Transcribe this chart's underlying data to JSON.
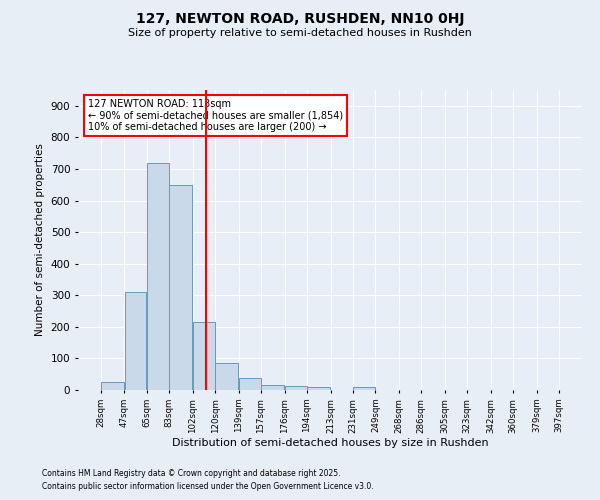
{
  "title1": "127, NEWTON ROAD, RUSHDEN, NN10 0HJ",
  "title2": "Size of property relative to semi-detached houses in Rushden",
  "xlabel": "Distribution of semi-detached houses by size in Rushden",
  "ylabel": "Number of semi-detached properties",
  "bar_values": [
    25,
    310,
    720,
    650,
    215,
    85,
    37,
    15,
    13,
    10,
    0,
    8,
    0,
    0,
    0,
    0,
    0,
    0,
    0,
    0
  ],
  "bin_labels": [
    "28sqm",
    "47sqm",
    "65sqm",
    "83sqm",
    "102sqm",
    "120sqm",
    "139sqm",
    "157sqm",
    "176sqm",
    "194sqm",
    "213sqm",
    "231sqm",
    "249sqm",
    "268sqm",
    "286sqm",
    "305sqm",
    "323sqm",
    "342sqm",
    "360sqm",
    "379sqm",
    "397sqm"
  ],
  "bin_edges": [
    28,
    47,
    65,
    83,
    102,
    120,
    139,
    157,
    176,
    194,
    213,
    231,
    249,
    268,
    286,
    305,
    323,
    342,
    360,
    379,
    397
  ],
  "bar_color": "#c9d9ea",
  "bar_edge_color": "#6699bb",
  "vline_x": 113,
  "vline_color": "red",
  "annotation_title": "127 NEWTON ROAD: 113sqm",
  "annotation_line1": "← 90% of semi-detached houses are smaller (1,854)",
  "annotation_line2": "10% of semi-detached houses are larger (200) →",
  "annotation_box_color": "red",
  "ylim": [
    0,
    950
  ],
  "yticks": [
    0,
    100,
    200,
    300,
    400,
    500,
    600,
    700,
    800,
    900
  ],
  "background_color": "#e8eef5",
  "footnote1": "Contains HM Land Registry data © Crown copyright and database right 2025.",
  "footnote2": "Contains public sector information licensed under the Open Government Licence v3.0."
}
